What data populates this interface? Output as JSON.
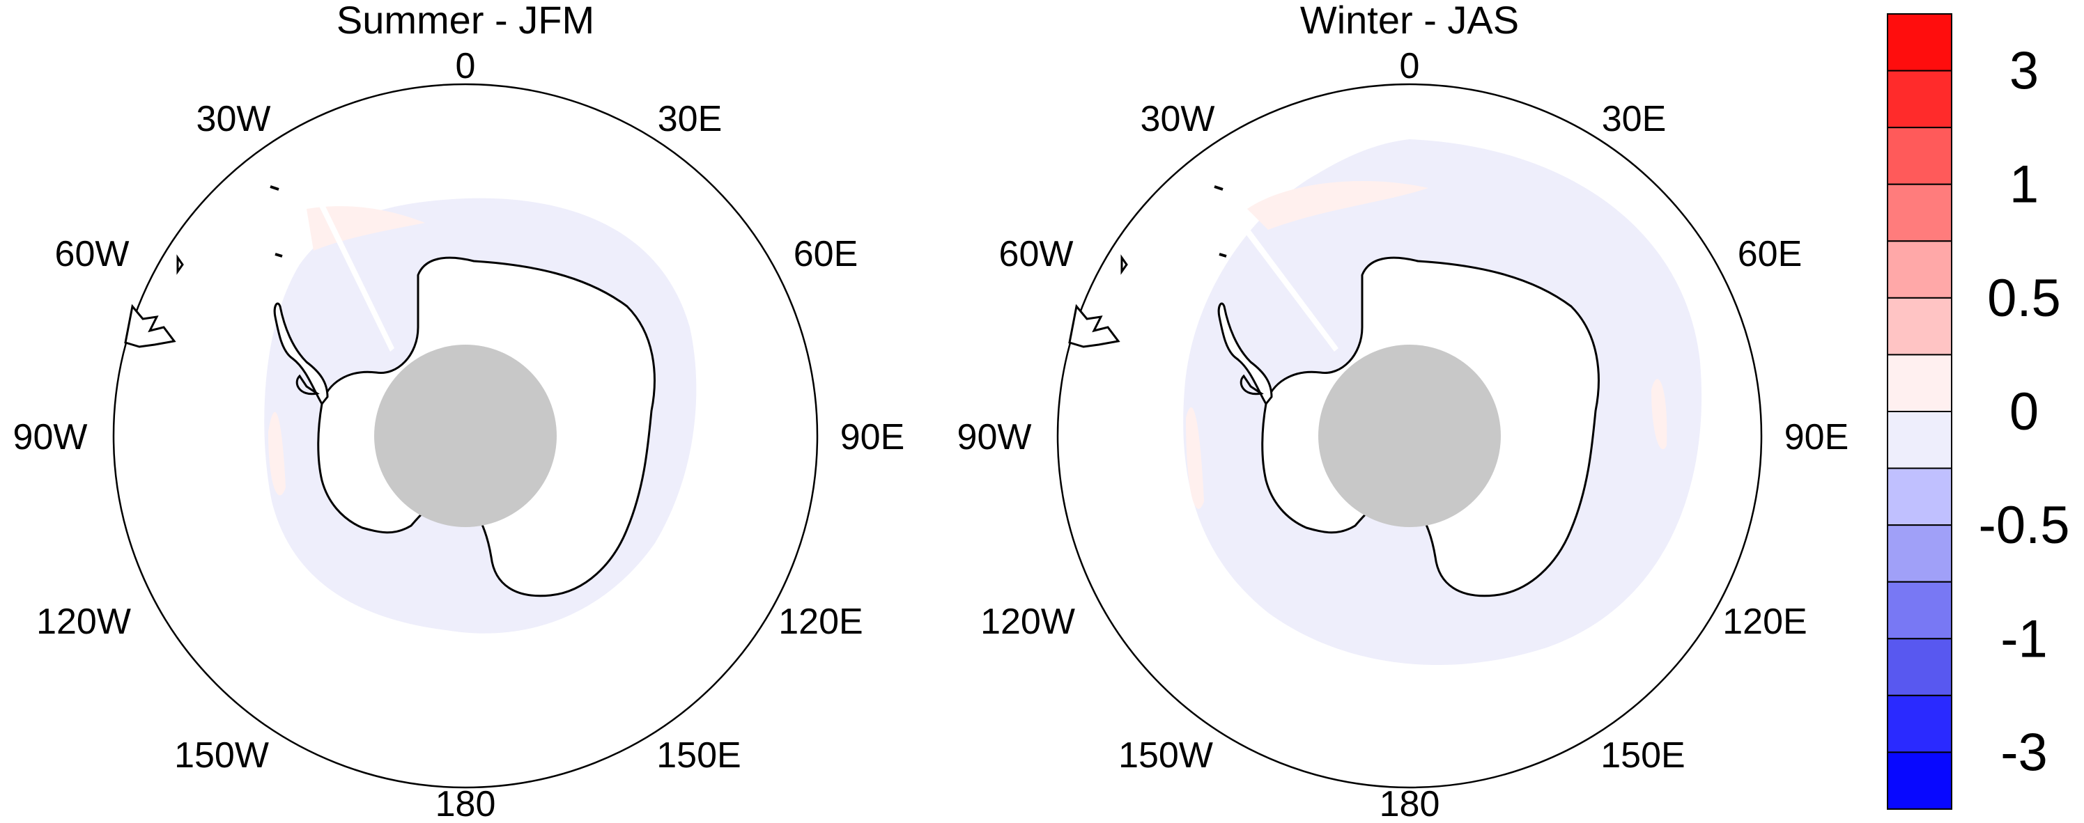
{
  "panels": [
    {
      "title": "Summer - JFM",
      "lon_labels": [
        "0",
        "30E",
        "60E",
        "90E",
        "120E",
        "150E",
        "180",
        "150W",
        "120W",
        "90W",
        "60W",
        "30W"
      ],
      "pole_fill_color": "#c8c8c8"
    },
    {
      "title": "Winter - JAS",
      "lon_labels": [
        "0",
        "30E",
        "60E",
        "90E",
        "120E",
        "150E",
        "180",
        "150W",
        "120W",
        "90W",
        "60W",
        "30W"
      ],
      "pole_fill_color": "#c8c8c8"
    }
  ],
  "colorbar": {
    "colors": [
      "#ff0d0d",
      "#ff2b2b",
      "#ff5a5a",
      "#ff7c7c",
      "#ffa8a8",
      "#ffc4c4",
      "#fff0f0",
      "#eeeefc",
      "#c0c0ff",
      "#a0a0f8",
      "#7878f4",
      "#5858f0",
      "#2a2aff",
      "#0808ff"
    ],
    "labels": [
      "3",
      "1",
      "0.5",
      "0",
      "-0.5",
      "-1",
      "-3"
    ]
  },
  "map_colors": {
    "anomaly_blue": "#eeeefb",
    "anomaly_pink": "#fff0ee",
    "coast": "#000000"
  }
}
